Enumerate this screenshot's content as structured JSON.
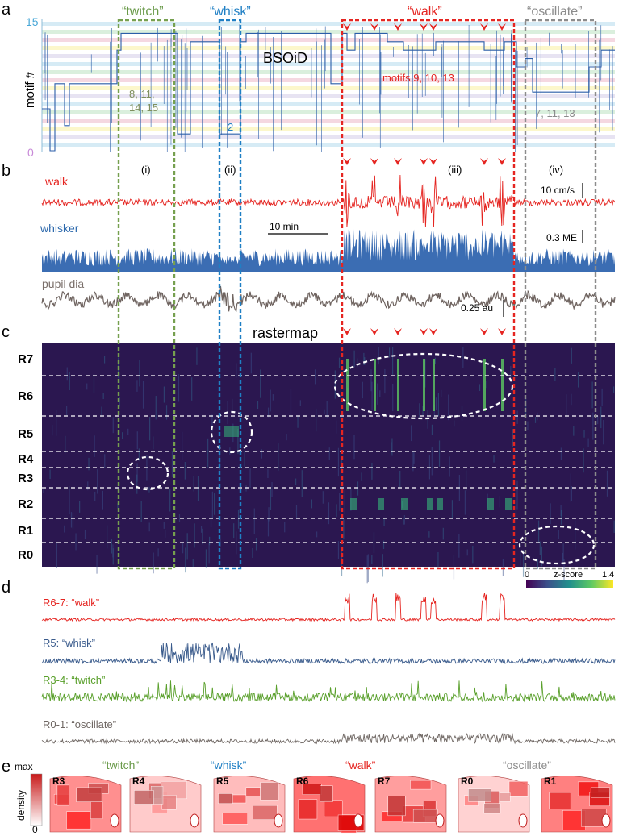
{
  "panels": {
    "a": {
      "letter": "a",
      "title": "BSOiD",
      "ylabel": "motif #",
      "y_top": "15",
      "y_bottom": "0",
      "behaviors": [
        {
          "label": "“twitch”",
          "color": "#6a9a4a"
        },
        {
          "label": "“whisk”",
          "color": "#1f7fc4"
        },
        {
          "label": "“walk”",
          "color": "#e52521"
        },
        {
          "label": "“oscillate”",
          "color": "#8c8c8c"
        }
      ],
      "motif_groups": [
        {
          "text_lines": [
            "8, 11,",
            "14, 15"
          ],
          "color": "#7f8f5e"
        },
        {
          "text_lines": [
            "2"
          ],
          "color": "#1f7fc4"
        },
        {
          "text_lines": [
            "motifs 9, 10, 13"
          ],
          "color": "#e52521"
        },
        {
          "text_lines": [
            "7, 11, 13"
          ],
          "color": "#8c8c8c"
        }
      ],
      "stripe_colors": [
        "#cfe8f3",
        "#d3ecd7",
        "#f3d1dc",
        "#fbf6c2",
        "#e3def0"
      ]
    },
    "b": {
      "letter": "b",
      "roman": [
        "(i)",
        "(ii)",
        "(iii)",
        "(iv)"
      ],
      "traces": [
        {
          "name": "walk",
          "color": "#e52521",
          "scale": "10 cm/s"
        },
        {
          "name": "whisker",
          "color": "#2e6aad",
          "scale": "0.3 ME"
        },
        {
          "name": "pupil dia",
          "color": "#7a6f6a",
          "scale": "0.25 au"
        }
      ],
      "time_scale": "10 min"
    },
    "c": {
      "letter": "c",
      "title": "rastermap",
      "rows": [
        "R7",
        "R6",
        "R5",
        "R4",
        "R3",
        "R2",
        "R1",
        "R0"
      ],
      "colorbar": {
        "min": "0",
        "max": "1.4",
        "label": "z-score"
      }
    },
    "d": {
      "letter": "d",
      "traces": [
        {
          "label": "R6-7: “walk”",
          "color": "#e52521"
        },
        {
          "label": "R5: “whisk”",
          "color": "#3a5b8c"
        },
        {
          "label": "R3-4: “twitch”",
          "color": "#5aa02c"
        },
        {
          "label": "R0-1: “oscillate”",
          "color": "#6f6763"
        }
      ]
    },
    "e": {
      "letter": "e",
      "axis": {
        "max": "max",
        "min": "0",
        "label": "density"
      },
      "groups": [
        {
          "label": "“twitch”",
          "color": "#6a9a4a"
        },
        {
          "label": "“whisk”",
          "color": "#1f7fc4"
        },
        {
          "label": "“walk”",
          "color": "#e52521"
        },
        {
          "label": "“oscillate”",
          "color": "#8c8c8c"
        }
      ],
      "maps": [
        {
          "label": "R3",
          "intensity": 0.75
        },
        {
          "label": "R4",
          "intensity": 0.35
        },
        {
          "label": "R5",
          "intensity": 0.45
        },
        {
          "label": "R6",
          "intensity": 0.95
        },
        {
          "label": "R7",
          "intensity": 0.65
        },
        {
          "label": "R0",
          "intensity": 0.3
        },
        {
          "label": "R1",
          "intensity": 0.85
        }
      ]
    }
  }
}
